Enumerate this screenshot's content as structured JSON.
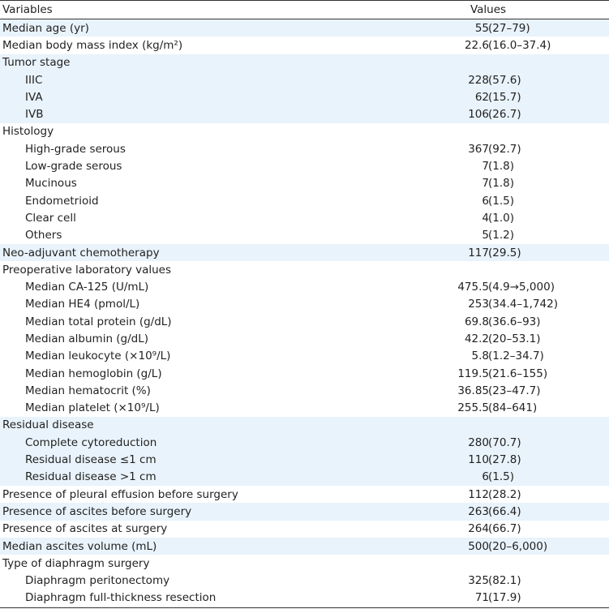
{
  "header": {
    "variables": "Variables",
    "values": "Values"
  },
  "rows": [
    {
      "label": "Median age (yr)",
      "num": "55",
      "paren": "(27–79)",
      "indent": false,
      "shade": true
    },
    {
      "label": "Median body mass index (kg/m²)",
      "num": "22.6",
      "paren": "(16.0–37.4)",
      "indent": false,
      "shade": false
    },
    {
      "label": "Tumor stage",
      "num": "",
      "paren": "",
      "indent": false,
      "shade": true
    },
    {
      "label": "IIIC",
      "num": "228",
      "paren": "(57.6)",
      "indent": true,
      "shade": true
    },
    {
      "label": "IVA",
      "num": "62",
      "paren": "(15.7)",
      "indent": true,
      "shade": true
    },
    {
      "label": "IVB",
      "num": "106",
      "paren": "(26.7)",
      "indent": true,
      "shade": true
    },
    {
      "label": "Histology",
      "num": "",
      "paren": "",
      "indent": false,
      "shade": false
    },
    {
      "label": "High-grade serous",
      "num": "367",
      "paren": "(92.7)",
      "indent": true,
      "shade": false
    },
    {
      "label": "Low-grade serous",
      "num": "7",
      "paren": "(1.8)",
      "indent": true,
      "shade": false
    },
    {
      "label": "Mucinous",
      "num": "7",
      "paren": "(1.8)",
      "indent": true,
      "shade": false
    },
    {
      "label": "Endometrioid",
      "num": "6",
      "paren": "(1.5)",
      "indent": true,
      "shade": false
    },
    {
      "label": "Clear cell",
      "num": "4",
      "paren": "(1.0)",
      "indent": true,
      "shade": false
    },
    {
      "label": "Others",
      "num": "5",
      "paren": "(1.2)",
      "indent": true,
      "shade": false
    },
    {
      "label": "Neo-adjuvant chemotherapy",
      "num": "117",
      "paren": "(29.5)",
      "indent": false,
      "shade": true
    },
    {
      "label": "Preoperative laboratory values",
      "num": "",
      "paren": "",
      "indent": false,
      "shade": false
    },
    {
      "label": "Median CA-125 (U/mL)",
      "num": "475.5",
      "paren": "(4.9→5,000)",
      "indent": true,
      "shade": false
    },
    {
      "label": "Median HE4 (pmol/L)",
      "num": "253",
      "paren": "(34.4–1,742)",
      "indent": true,
      "shade": false
    },
    {
      "label": "Median total protein (g/dL)",
      "num": "69.8",
      "paren": "(36.6–93)",
      "indent": true,
      "shade": false
    },
    {
      "label": "Median albumin (g/dL)",
      "num": "42.2",
      "paren": "(20–53.1)",
      "indent": true,
      "shade": false
    },
    {
      "label": "Median leukocyte (×10⁹/L)",
      "num": "5.8",
      "paren": "(1.2–34.7)",
      "indent": true,
      "shade": false
    },
    {
      "label": "Median hemoglobin (g/L)",
      "num": "119.5",
      "paren": "(21.6–155)",
      "indent": true,
      "shade": false
    },
    {
      "label": "Median hematocrit (%)",
      "num": "36.85",
      "paren": "(23–47.7)",
      "indent": true,
      "shade": false
    },
    {
      "label": "Median platelet (×10⁹/L)",
      "num": "255.5",
      "paren": "(84–641)",
      "indent": true,
      "shade": false
    },
    {
      "label": "Residual disease",
      "num": "",
      "paren": "",
      "indent": false,
      "shade": true
    },
    {
      "label": "Complete cytoreduction",
      "num": "280",
      "paren": "(70.7)",
      "indent": true,
      "shade": true
    },
    {
      "label": "Residual disease ≤1 cm",
      "num": "110",
      "paren": "(27.8)",
      "indent": true,
      "shade": true
    },
    {
      "label": "Residual disease >1 cm",
      "num": "6",
      "paren": "(1.5)",
      "indent": true,
      "shade": true
    },
    {
      "label": "Presence of pleural effusion before surgery",
      "num": "112",
      "paren": "(28.2)",
      "indent": false,
      "shade": false
    },
    {
      "label": "Presence of ascites before surgery",
      "num": "263",
      "paren": "(66.4)",
      "indent": false,
      "shade": true
    },
    {
      "label": "Presence of ascites at surgery",
      "num": "264",
      "paren": "(66.7)",
      "indent": false,
      "shade": false
    },
    {
      "label": "Median ascites volume (mL)",
      "num": "500",
      "paren": "(20–6,000)",
      "indent": false,
      "shade": true
    },
    {
      "label": "Type of diaphragm surgery",
      "num": "",
      "paren": "",
      "indent": false,
      "shade": false
    },
    {
      "label": "Diaphragm peritonectomy",
      "num": "325",
      "paren": "(82.1)",
      "indent": true,
      "shade": false
    },
    {
      "label": "Diaphragm full-thickness resection",
      "num": "71",
      "paren": "(17.9)",
      "indent": true,
      "shade": false
    }
  ]
}
